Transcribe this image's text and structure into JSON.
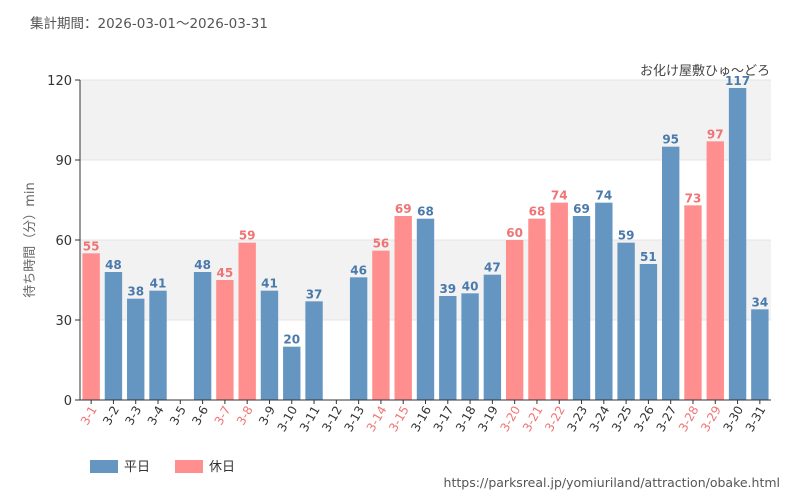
{
  "period_text": "集計期間：2026-03-01～2026-03-31",
  "attraction_name": "お化け屋敷ひゅ～どろ",
  "source_url": "https://parksreal.jp/yomiuriland/attraction/obake.html",
  "colors": {
    "weekday": "#6596c2",
    "holiday": "#ff8f8f",
    "holiday_label": "#f07474",
    "weekday_label": "#4a7aab",
    "band": "#f2f2f2"
  },
  "chart_data": {
    "type": "bar",
    "ylabel": "待ち時間（分）min",
    "ylim": [
      0,
      120
    ],
    "yticks": [
      0,
      30,
      60,
      90,
      120
    ],
    "categories": [
      "3-1",
      "3-2",
      "3-3",
      "3-4",
      "3-5",
      "3-6",
      "3-7",
      "3-8",
      "3-9",
      "3-10",
      "3-11",
      "3-12",
      "3-13",
      "3-14",
      "3-15",
      "3-16",
      "3-17",
      "3-18",
      "3-19",
      "3-20",
      "3-21",
      "3-22",
      "3-23",
      "3-24",
      "3-25",
      "3-26",
      "3-27",
      "3-28",
      "3-29",
      "3-30",
      "3-31"
    ],
    "values": [
      55,
      48,
      38,
      41,
      null,
      48,
      45,
      59,
      41,
      20,
      37,
      null,
      46,
      56,
      69,
      68,
      39,
      40,
      47,
      60,
      68,
      74,
      69,
      74,
      59,
      51,
      95,
      73,
      97,
      117,
      34
    ],
    "day_type": [
      "holiday",
      "weekday",
      "weekday",
      "weekday",
      "weekday",
      "weekday",
      "holiday",
      "holiday",
      "weekday",
      "weekday",
      "weekday",
      "weekday",
      "weekday",
      "holiday",
      "holiday",
      "weekday",
      "weekday",
      "weekday",
      "weekday",
      "holiday",
      "holiday",
      "holiday",
      "weekday",
      "weekday",
      "weekday",
      "weekday",
      "weekday",
      "holiday",
      "holiday",
      "weekday",
      "weekday"
    ],
    "series": [
      {
        "name": "平日",
        "key": "weekday"
      },
      {
        "name": "休日",
        "key": "holiday"
      }
    ],
    "legend_position": "bottom-left",
    "grid": true
  }
}
